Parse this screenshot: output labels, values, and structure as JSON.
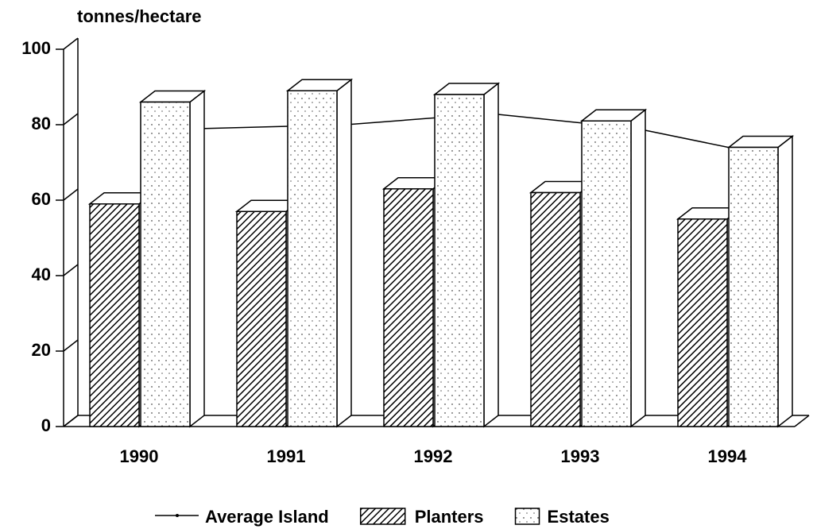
{
  "chart_data": {
    "type": "bar3d",
    "y_label": "tonnes/hectare",
    "categories": [
      "1990",
      "1991",
      "1992",
      "1993",
      "1994"
    ],
    "series": [
      {
        "name": "Average Island",
        "kind": "line",
        "color": "#000000",
        "values": [
          76,
          77,
          80,
          76,
          68
        ]
      },
      {
        "name": "Planters",
        "kind": "bar",
        "color": "#000000",
        "values": [
          59,
          57,
          63,
          62,
          55
        ]
      },
      {
        "name": "Estates",
        "kind": "bar",
        "color": "#000000",
        "values": [
          86,
          89,
          88,
          81,
          74
        ]
      }
    ],
    "ylim": [
      0,
      100
    ],
    "yticks": [
      0,
      20,
      40,
      60,
      80,
      100
    ]
  }
}
